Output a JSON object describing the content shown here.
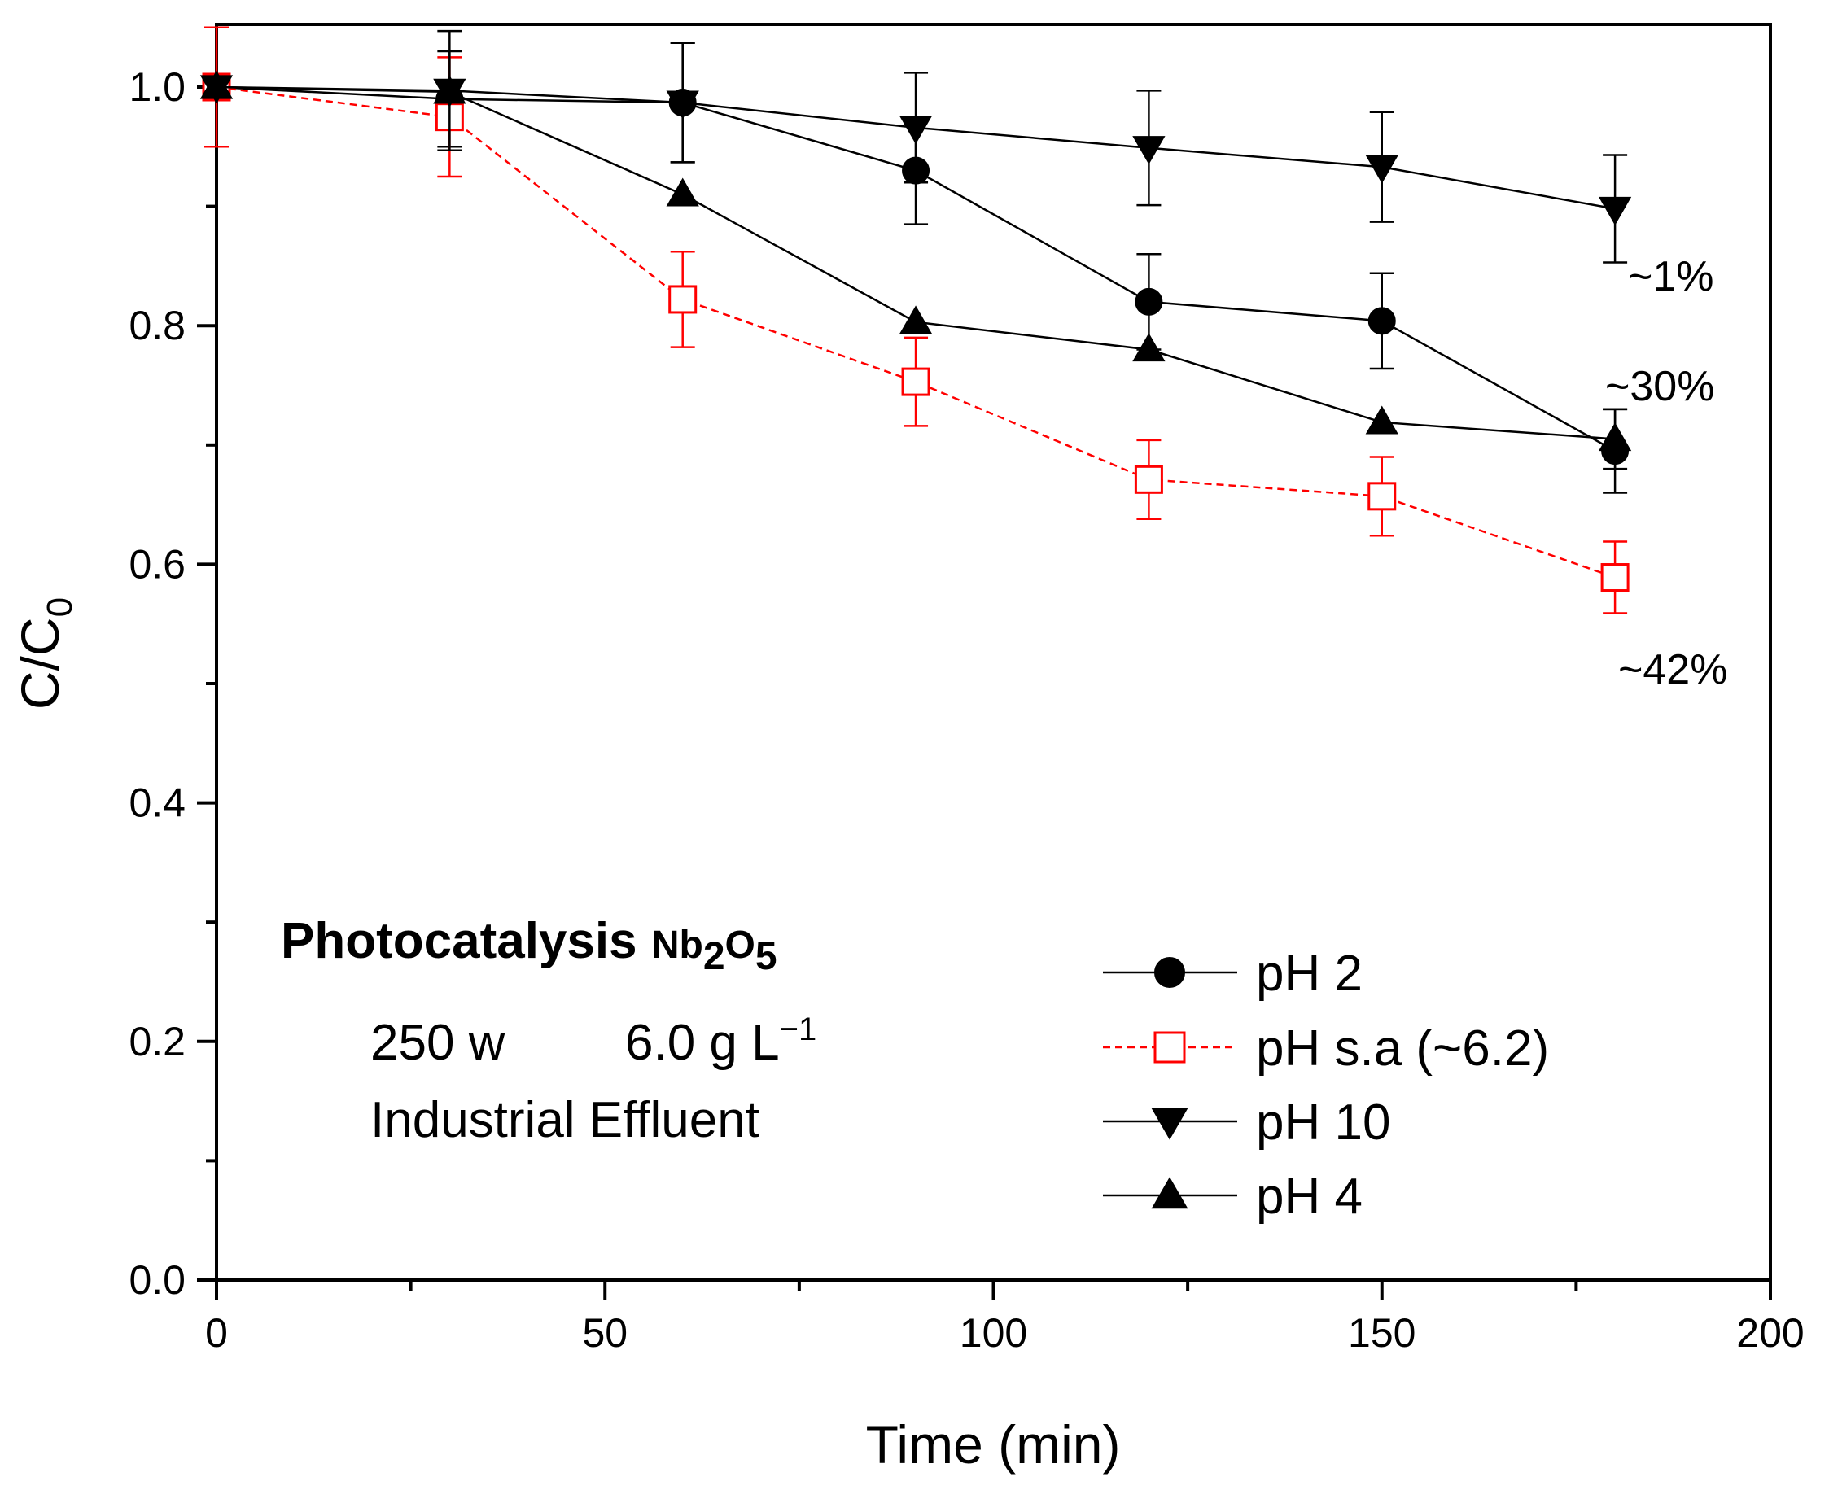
{
  "chart_data": {
    "type": "line",
    "xlabel": "Time (min)",
    "ylabel_main": "C/C",
    "ylabel_sub": "0",
    "xlim": [
      0,
      200
    ],
    "ylim": [
      0,
      1.05
    ],
    "xticks": [
      0,
      50,
      100,
      150,
      200
    ],
    "xtick_labels": [
      "0",
      "50",
      "100",
      "150",
      "200"
    ],
    "xminor": [
      25,
      75,
      125,
      175
    ],
    "yticks": [
      0,
      0.2,
      0.4,
      0.6,
      0.8,
      1.0
    ],
    "ytick_labels": [
      "0.0",
      "0.2",
      "0.4",
      "0.6",
      "0.8",
      "1.0"
    ],
    "yminor": [
      0.1,
      0.3,
      0.5,
      0.7,
      0.9
    ],
    "x": [
      0,
      30,
      60,
      90,
      120,
      150,
      180
    ],
    "series": [
      {
        "name": "pH 2",
        "marker": "circle",
        "filled": true,
        "color": "#000000",
        "dashed": false,
        "values": [
          1.0,
          0.99,
          0.987,
          0.93,
          0.82,
          0.804,
          0.695
        ],
        "errors": [
          0.0,
          0.04,
          0.05,
          0.045,
          0.04,
          0.04,
          0.035
        ]
      },
      {
        "name": "pH s.a (~6.2)",
        "marker": "square",
        "filled": false,
        "color": "#ff0000",
        "dashed": true,
        "values": [
          1.0,
          0.975,
          0.822,
          0.753,
          0.671,
          0.657,
          0.589
        ],
        "errors": [
          0.05,
          0.05,
          0.04,
          0.037,
          0.033,
          0.033,
          0.03
        ]
      },
      {
        "name": "pH 10",
        "marker": "triangle-down",
        "filled": true,
        "color": "#000000",
        "dashed": false,
        "values": [
          1.0,
          0.997,
          0.987,
          0.966,
          0.949,
          0.933,
          0.898
        ],
        "errors": [
          0.0,
          0.05,
          0.05,
          0.046,
          0.048,
          0.046,
          0.045
        ]
      },
      {
        "name": "pH 4",
        "marker": "triangle-up",
        "filled": true,
        "color": "#000000",
        "dashed": false,
        "values": [
          1.0,
          0.996,
          0.91,
          0.803,
          0.78,
          0.719,
          0.705
        ],
        "errors": [
          0.0,
          0.0,
          0.0,
          0.0,
          0.0,
          0.0,
          0.025
        ]
      }
    ],
    "annotations": [
      "~1%",
      "~30%",
      "~42%"
    ],
    "info": {
      "title_main": "Photocatalysis ",
      "formula_1": "Nb",
      "formula_2": "2",
      "formula_3": "O",
      "formula_4": "5",
      "power": "250 w",
      "dose": "6.0 g L",
      "dose_sup": "−1",
      "sample": "Industrial Effluent"
    },
    "legend_position": "bottom-right"
  }
}
